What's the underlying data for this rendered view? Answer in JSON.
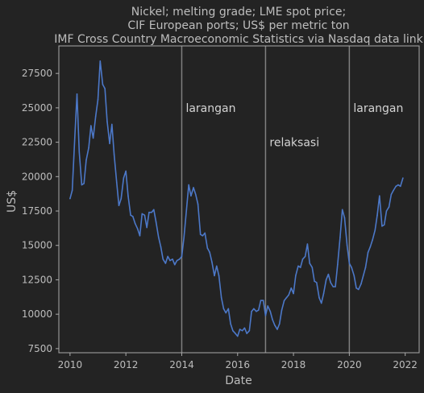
{
  "chart_data": {
    "type": "line",
    "title": [
      "Nickel; melting grade; LME spot price;",
      "CIF European ports; US$ per metric ton",
      "IMF Cross Country Macroeconomic Statistics via Nasdaq data link"
    ],
    "xlabel": "Date",
    "ylabel": "US$",
    "xlim": [
      2009.6,
      2022.5
    ],
    "ylim": [
      7200,
      29500
    ],
    "xticks": [
      2010,
      2012,
      2014,
      2016,
      2018,
      2020,
      2022
    ],
    "yticks": [
      7500,
      10000,
      12500,
      15000,
      17500,
      20000,
      22500,
      25000,
      27500
    ],
    "grid": false,
    "colors": {
      "background": "#232323",
      "axes": "#aaaaaa",
      "text": "#bdbdbd",
      "line": "#4c78c8",
      "vline": "#7f7f7f"
    },
    "vlines": [
      {
        "x": 2014.0,
        "label": "larangan",
        "label_y": 25000
      },
      {
        "x": 2017.0,
        "label": "relaksasi",
        "label_y": 22500
      },
      {
        "x": 2020.0,
        "label": "larangan",
        "label_y": 25000
      }
    ],
    "series": [
      {
        "x": [
          2010.0,
          2010.08,
          2010.17,
          2010.25,
          2010.33,
          2010.42,
          2010.5,
          2010.58,
          2010.67,
          2010.75,
          2010.83,
          2010.92,
          2011.0,
          2011.08,
          2011.17,
          2011.25,
          2011.33,
          2011.42,
          2011.5,
          2011.58,
          2011.67,
          2011.75,
          2011.83,
          2011.92,
          2012.0,
          2012.08,
          2012.17,
          2012.25,
          2012.33,
          2012.42,
          2012.5,
          2012.58,
          2012.67,
          2012.75,
          2012.83,
          2012.92,
          2013.0,
          2013.08,
          2013.17,
          2013.25,
          2013.33,
          2013.42,
          2013.5,
          2013.58,
          2013.67,
          2013.75,
          2013.83,
          2013.92,
          2014.0,
          2014.08,
          2014.17,
          2014.25,
          2014.33,
          2014.42,
          2014.5,
          2014.58,
          2014.67,
          2014.75,
          2014.83,
          2014.92,
          2015.0,
          2015.08,
          2015.17,
          2015.25,
          2015.33,
          2015.42,
          2015.5,
          2015.58,
          2015.67,
          2015.75,
          2015.83,
          2015.92,
          2016.0,
          2016.08,
          2016.17,
          2016.25,
          2016.33,
          2016.42,
          2016.5,
          2016.58,
          2016.67,
          2016.75,
          2016.83,
          2016.92,
          2017.0,
          2017.08,
          2017.17,
          2017.25,
          2017.33,
          2017.42,
          2017.5,
          2017.58,
          2017.67,
          2017.75,
          2017.83,
          2017.92,
          2018.0,
          2018.08,
          2018.17,
          2018.25,
          2018.33,
          2018.42,
          2018.5,
          2018.58,
          2018.67,
          2018.75,
          2018.83,
          2018.92,
          2019.0,
          2019.08,
          2019.17,
          2019.25,
          2019.33,
          2019.42,
          2019.5,
          2019.58,
          2019.67,
          2019.75,
          2019.83,
          2019.92,
          2020.0,
          2020.08,
          2020.17,
          2020.25,
          2020.33,
          2020.42,
          2020.5,
          2020.58,
          2020.67,
          2020.75,
          2020.83,
          2020.92,
          2021.0,
          2021.08,
          2021.17,
          2021.25,
          2021.33,
          2021.42,
          2021.5,
          2021.58,
          2021.67,
          2021.75,
          2021.83,
          2021.92
        ],
        "values": [
          18400,
          19000,
          22800,
          26000,
          21800,
          19400,
          19500,
          21200,
          22100,
          23700,
          22800,
          24400,
          25600,
          28400,
          26700,
          26400,
          24000,
          22400,
          23800,
          21600,
          19600,
          17900,
          18400,
          19900,
          20400,
          18600,
          17200,
          17100,
          16600,
          16200,
          15700,
          17300,
          17200,
          16300,
          17400,
          17400,
          17600,
          16700,
          15600,
          14900,
          14000,
          13700,
          14200,
          13900,
          14000,
          13600,
          13900,
          14000,
          14200,
          15600,
          17600,
          19400,
          18600,
          19200,
          18700,
          18000,
          15800,
          15700,
          15900,
          14800,
          14500,
          13800,
          12800,
          13500,
          12800,
          11200,
          10400,
          10100,
          10400,
          9300,
          8800,
          8600,
          8400,
          8900,
          8800,
          9000,
          8600,
          8800,
          10200,
          10400,
          10200,
          10300,
          11000,
          11000,
          9900,
          10600,
          10200,
          9600,
          9200,
          8900,
          9300,
          10300,
          11000,
          11200,
          11400,
          11900,
          11500,
          12800,
          13500,
          13400,
          14000,
          14200,
          15100,
          13700,
          13400,
          12400,
          12300,
          11200,
          10800,
          11500,
          12500,
          12900,
          12300,
          12000,
          12000,
          13600,
          15600,
          17600,
          17000,
          15000,
          13700,
          13400,
          12800,
          11900,
          11800,
          12200,
          12800,
          13400,
          14500,
          14900,
          15400,
          16100,
          17200,
          18600,
          16400,
          16500,
          17500,
          17800,
          18700,
          19000,
          19300,
          19400,
          19300,
          19900
        ]
      }
    ]
  }
}
